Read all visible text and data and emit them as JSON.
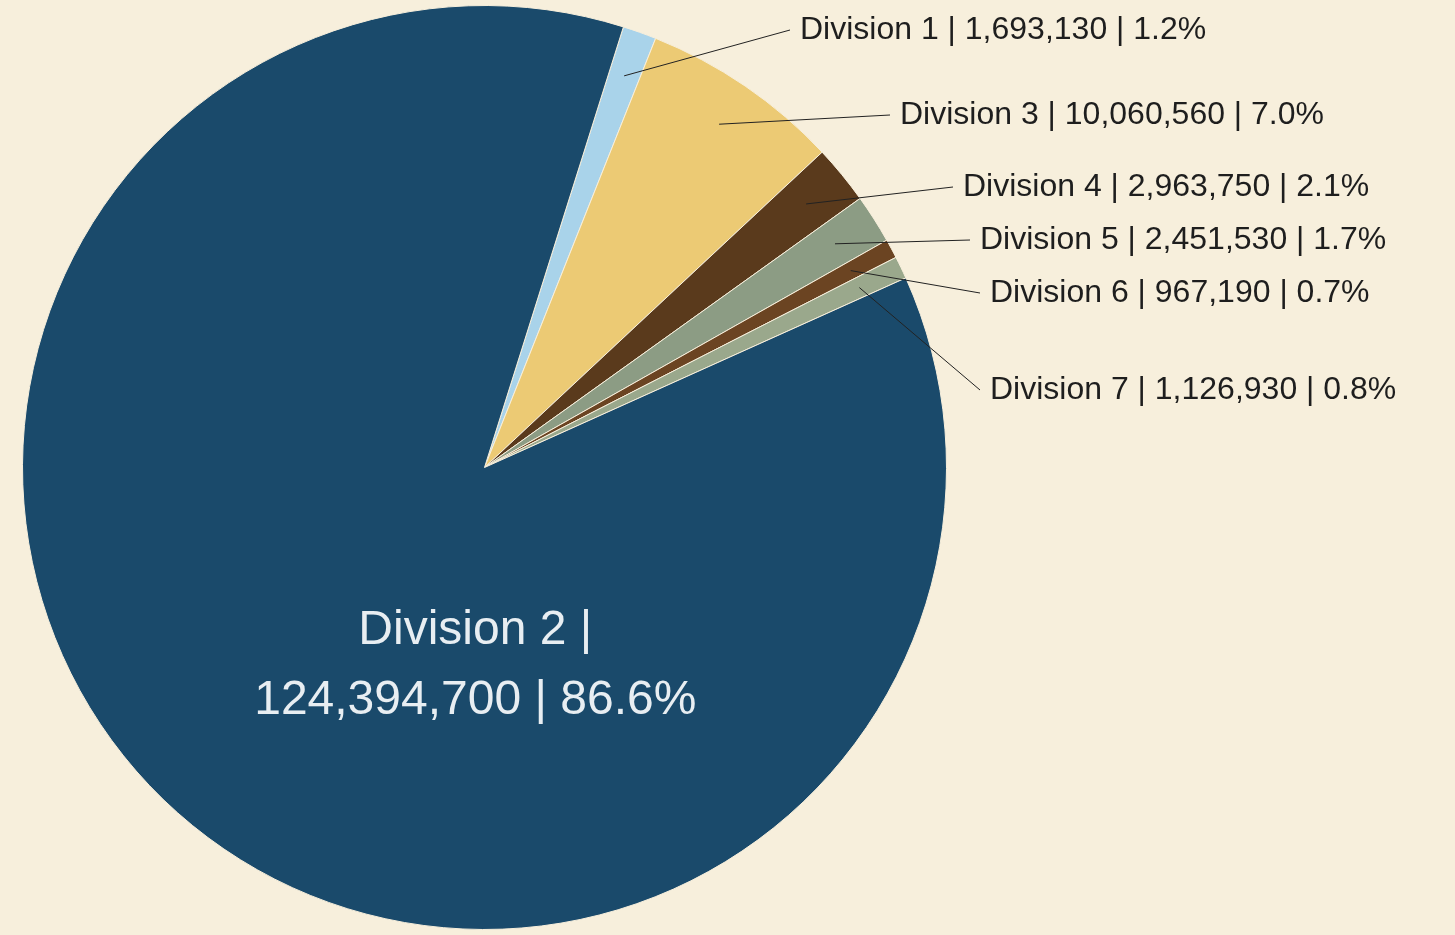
{
  "chart_data": {
    "type": "pie",
    "categories": [
      "Division 1",
      "Division 3",
      "Division 4",
      "Division 5",
      "Division 6",
      "Division 7",
      "Division 2"
    ],
    "values": [
      1693130,
      10060560,
      2963750,
      2451530,
      967190,
      1126930,
      124394700
    ],
    "colors": [
      "#a9d3ea",
      "#ecca74",
      "#5a3a1c",
      "#8c9c84",
      "#6b4422",
      "#9aa88c",
      "#1a4a6b"
    ],
    "value_labels": [
      "| 1,693,130 | 1.2%",
      "| 10,060,560 | 7.0%",
      "| 2,963,750 | 2.1%",
      "| 2,451,530 | 1.7%",
      "| 967,190 | 0.7%",
      "| 1,126,930 | 0.8%",
      "| 124,394,700 | 86.6%"
    ]
  }
}
